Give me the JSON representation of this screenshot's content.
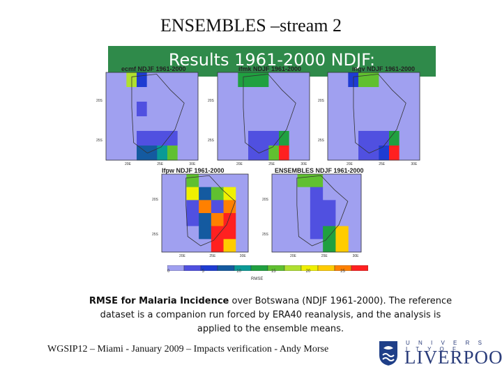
{
  "title": "ENSEMBLES –stream 2",
  "banner": {
    "text": "Results 1961-2000 NDJF:",
    "color": "#2f8a4a"
  },
  "chart_data": {
    "type": "heatmap",
    "description_kind": "five map panels of RMSE over Botswana with shared colorbar",
    "colors": [
      "#a0a0f0",
      "#5050e0",
      "#1e3cd2",
      "#145aa0",
      "#0a9a96",
      "#20a040",
      "#60c030",
      "#b0e030",
      "#f0f000",
      "#ffcc00",
      "#ff8000",
      "#ff2020"
    ],
    "background_color": "#a0a0f0",
    "panels": [
      {
        "title": "ecmf NDJF 1961-2000",
        "cells": [
          [
            0,
            0,
            7,
            2,
            0,
            0,
            0,
            0,
            0
          ],
          [
            0,
            0,
            0,
            0,
            0,
            0,
            0,
            0,
            0
          ],
          [
            0,
            0,
            0,
            1,
            0,
            0,
            0,
            0,
            0
          ],
          [
            0,
            0,
            0,
            0,
            0,
            0,
            0,
            0,
            0
          ],
          [
            0,
            0,
            0,
            1,
            1,
            1,
            1,
            0,
            0
          ],
          [
            0,
            0,
            0,
            3,
            3,
            4,
            6,
            0,
            0
          ]
        ]
      },
      {
        "title": "ifmk NDJF 1961-2000",
        "cells": [
          [
            0,
            0,
            5,
            5,
            5,
            0,
            0,
            0,
            0
          ],
          [
            0,
            0,
            0,
            0,
            0,
            0,
            0,
            0,
            0
          ],
          [
            0,
            0,
            0,
            0,
            0,
            0,
            0,
            0,
            0
          ],
          [
            0,
            0,
            0,
            0,
            0,
            0,
            0,
            0,
            0
          ],
          [
            0,
            0,
            0,
            1,
            1,
            1,
            5,
            0,
            0
          ],
          [
            0,
            0,
            0,
            1,
            1,
            6,
            11,
            0,
            0
          ]
        ]
      },
      {
        "title": "ingv NDJF 1961-2000",
        "cells": [
          [
            0,
            0,
            2,
            6,
            6,
            0,
            0,
            0,
            0
          ],
          [
            0,
            0,
            0,
            0,
            0,
            0,
            0,
            0,
            0
          ],
          [
            0,
            0,
            0,
            0,
            0,
            0,
            0,
            0,
            0
          ],
          [
            0,
            0,
            0,
            0,
            0,
            0,
            0,
            0,
            0
          ],
          [
            0,
            0,
            0,
            1,
            1,
            1,
            5,
            0,
            0
          ],
          [
            0,
            0,
            0,
            1,
            1,
            2,
            11,
            0,
            0
          ]
        ]
      },
      {
        "title": "lfpw NDJF 1961-2000",
        "cells": [
          [
            0,
            0,
            6,
            0,
            0,
            0,
            0
          ],
          [
            0,
            0,
            8,
            3,
            6,
            8,
            0
          ],
          [
            0,
            0,
            1,
            10,
            1,
            10,
            0
          ],
          [
            0,
            0,
            1,
            3,
            10,
            11,
            0
          ],
          [
            0,
            0,
            0,
            3,
            11,
            11,
            0
          ],
          [
            0,
            0,
            0,
            0,
            11,
            9,
            0
          ]
        ]
      },
      {
        "title": "ENSEMBLES NDJF 1961-2000",
        "cells": [
          [
            0,
            0,
            6,
            6,
            0,
            0,
            0
          ],
          [
            0,
            0,
            0,
            1,
            0,
            0,
            0
          ],
          [
            0,
            0,
            0,
            1,
            1,
            0,
            0
          ],
          [
            0,
            0,
            0,
            1,
            1,
            0,
            0
          ],
          [
            0,
            0,
            0,
            1,
            5,
            9,
            0
          ],
          [
            0,
            0,
            0,
            0,
            5,
            9,
            0
          ]
        ]
      }
    ],
    "map_ticks": {
      "x": [
        "20E",
        "25E",
        "30E"
      ],
      "y": [
        "20S",
        "25S"
      ]
    },
    "colorbar": {
      "ticks": [
        "0",
        "5",
        "10",
        "15",
        "20",
        "25"
      ],
      "label": "RMSE"
    }
  },
  "caption": {
    "bold": "RMSE for Malaria Incidence",
    "text": " over Botswana (NDJF 1961-2000). The reference dataset is a companion run forced by ERA40 reanalysis, and the analysis is applied to the ensemble means."
  },
  "footer": "WGSIP12 – Miami - January 2009 – Impacts verification - Andy Morse",
  "logo": {
    "top": "U N I V E R S I T Y   O F",
    "main": "LIVERPOOL"
  }
}
